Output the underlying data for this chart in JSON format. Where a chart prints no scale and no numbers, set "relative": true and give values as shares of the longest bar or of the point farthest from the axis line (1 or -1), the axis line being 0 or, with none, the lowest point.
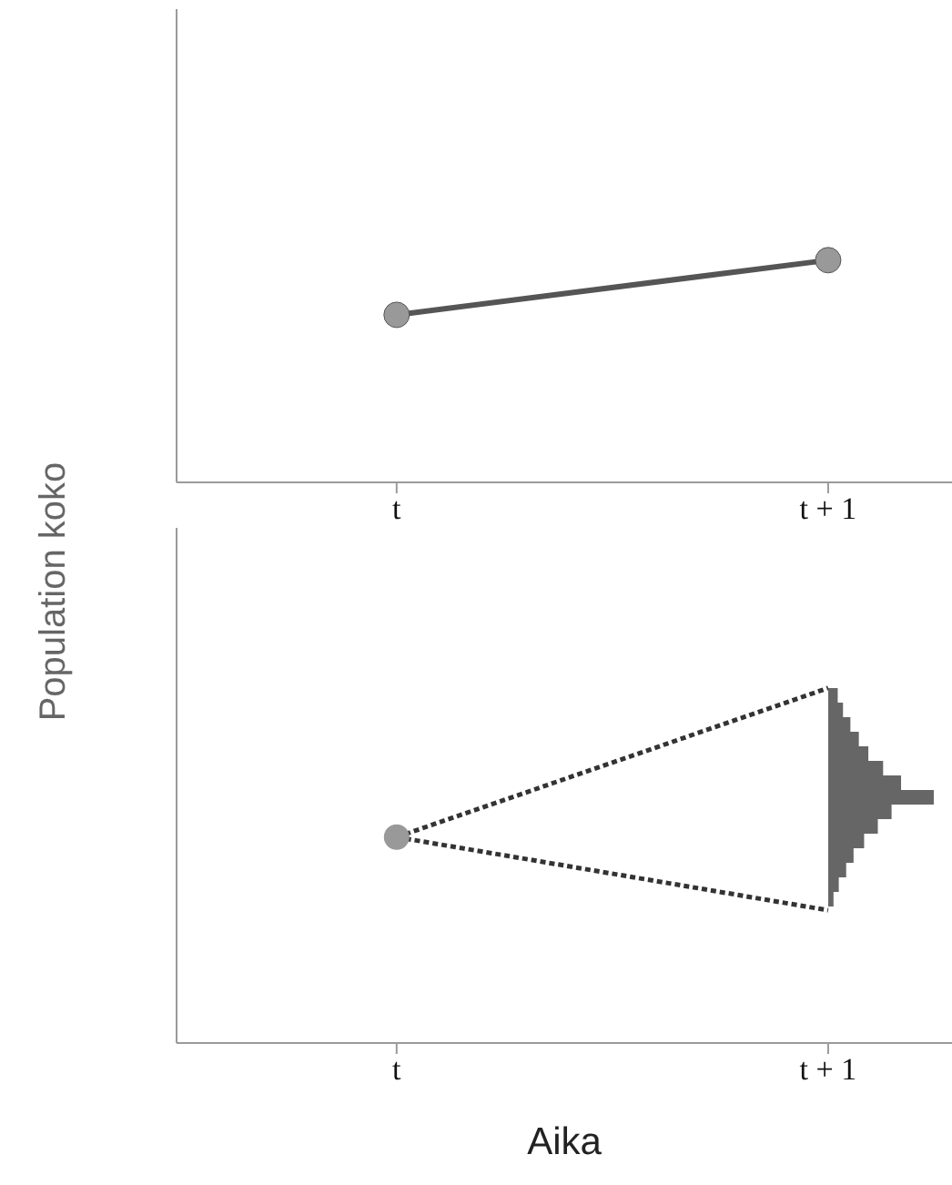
{
  "chart_data": [
    {
      "type": "line",
      "ylabel": "Population koko",
      "categories": [
        "t",
        "t + 1"
      ],
      "relative": true,
      "marker": "circle",
      "line_style": "solid",
      "series": [
        {
          "color": "#555555",
          "values": [
            0.754,
            1
          ]
        }
      ]
    },
    {
      "type": "line",
      "xlabel": "Aika",
      "categories": [
        "t",
        "t + 1"
      ],
      "relative": true,
      "marker": "none",
      "line_style": "dotted",
      "series": [
        {
          "color": "#333333",
          "values": [
            0.58,
            1
          ]
        },
        {
          "color": "#333333",
          "values": [
            0.58,
            0.374
          ]
        },
        {
          "type": "scatter",
          "marker": "circle",
          "color": "#999999",
          "values": [
            0.58,
            null
          ]
        }
      ]
    },
    {
      "type": "bar",
      "orientation": "horizontal",
      "relative": true,
      "color": "#666666",
      "categories": [
        null,
        null,
        null,
        null,
        null,
        null,
        null,
        null,
        null,
        null,
        null,
        null,
        null,
        null,
        null
      ],
      "values": [
        0.09,
        0.14,
        0.21,
        0.29,
        0.38,
        0.52,
        0.69,
        1,
        0.6,
        0.47,
        0.34,
        0.24,
        0.17,
        0.1,
        0.05
      ]
    }
  ]
}
